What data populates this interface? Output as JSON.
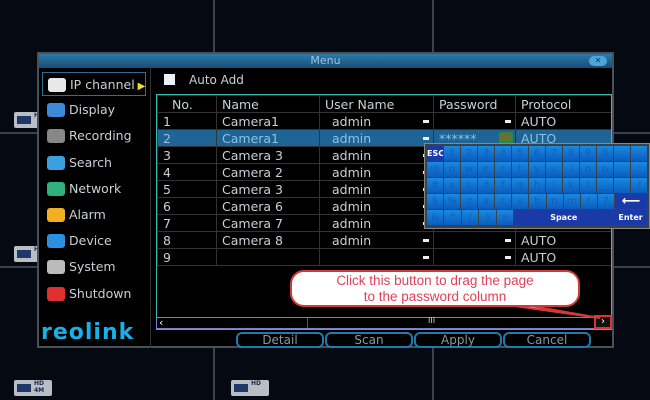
{
  "menu": {
    "title": "Menu",
    "close_icon": "close-icon"
  },
  "sidebar": {
    "items": [
      {
        "label": "IP channel",
        "icon": "webcam-icon",
        "color": "#e8e8e8"
      },
      {
        "label": "Display",
        "icon": "display-icon",
        "color": "#3a8ad8"
      },
      {
        "label": "Recording",
        "icon": "recording-icon",
        "color": "#888888"
      },
      {
        "label": "Search",
        "icon": "search-icon",
        "color": "#3aa0e0"
      },
      {
        "label": "Network",
        "icon": "network-icon",
        "color": "#30b080"
      },
      {
        "label": "Alarm",
        "icon": "alarm-icon",
        "color": "#f0b020"
      },
      {
        "label": "Device",
        "icon": "device-icon",
        "color": "#2a90e0"
      },
      {
        "label": "System",
        "icon": "gear-icon",
        "color": "#bbbbbb"
      },
      {
        "label": "Shutdown",
        "icon": "power-icon",
        "color": "#e03030"
      }
    ],
    "logo": "reolink"
  },
  "auto_add": {
    "label": "Auto Add",
    "checked": false
  },
  "table": {
    "headers": [
      "No.",
      "Name",
      "User Name",
      "Password",
      "Protocol"
    ],
    "rows": [
      [
        "1",
        "Camera1",
        "admin",
        "",
        "AUTO"
      ],
      [
        "2",
        "Camera1",
        "admin",
        "******",
        "AUTO"
      ],
      [
        "3",
        "Camera 3",
        "admin",
        "",
        ""
      ],
      [
        "4",
        "Camera 2",
        "admin",
        "",
        ""
      ],
      [
        "5",
        "Camera 3",
        "admin",
        "",
        ""
      ],
      [
        "6",
        "Camera 6",
        "admin",
        "",
        ""
      ],
      [
        "7",
        "Camera 7",
        "admin",
        "",
        ""
      ],
      [
        "8",
        "Camera 8",
        "admin",
        "",
        "AUTO"
      ],
      [
        "9",
        "",
        "",
        "",
        "AUTO"
      ]
    ],
    "selected_row": 2
  },
  "scrollbar": {
    "left": "‹",
    "right": "›",
    "thumb": "III"
  },
  "buttons": {
    "detail": "Detail",
    "scan": "Scan",
    "apply": "Apply",
    "cancel": "Cancel"
  },
  "keyboard": {
    "rows": [
      [
        "ESC",
        "1",
        "2",
        "3",
        "4",
        "5",
        "6",
        "7",
        "8",
        "9",
        "0",
        ".",
        ","
      ],
      [
        "@",
        "q",
        "w",
        "e",
        "r",
        "t",
        "y",
        "u",
        "i",
        "o",
        "p",
        ":",
        ";"
      ],
      [
        "#",
        "a",
        "s",
        "d",
        "f",
        "g",
        "h",
        "j",
        "k",
        "l",
        "_",
        "-",
        "/"
      ],
      [
        "$",
        "%",
        "z",
        "x",
        "c",
        "v",
        "b",
        "n",
        "m",
        "!",
        "?",
        "⟵"
      ],
      [
        "&",
        "*",
        "(",
        ")",
        "=",
        "Space",
        "Enter"
      ]
    ]
  },
  "callout": {
    "line1": "Click this button to drag the page",
    "line2": "to the password column"
  },
  "background": {
    "badges": [
      "HD",
      "HD",
      "HD 4M",
      "HD"
    ]
  }
}
